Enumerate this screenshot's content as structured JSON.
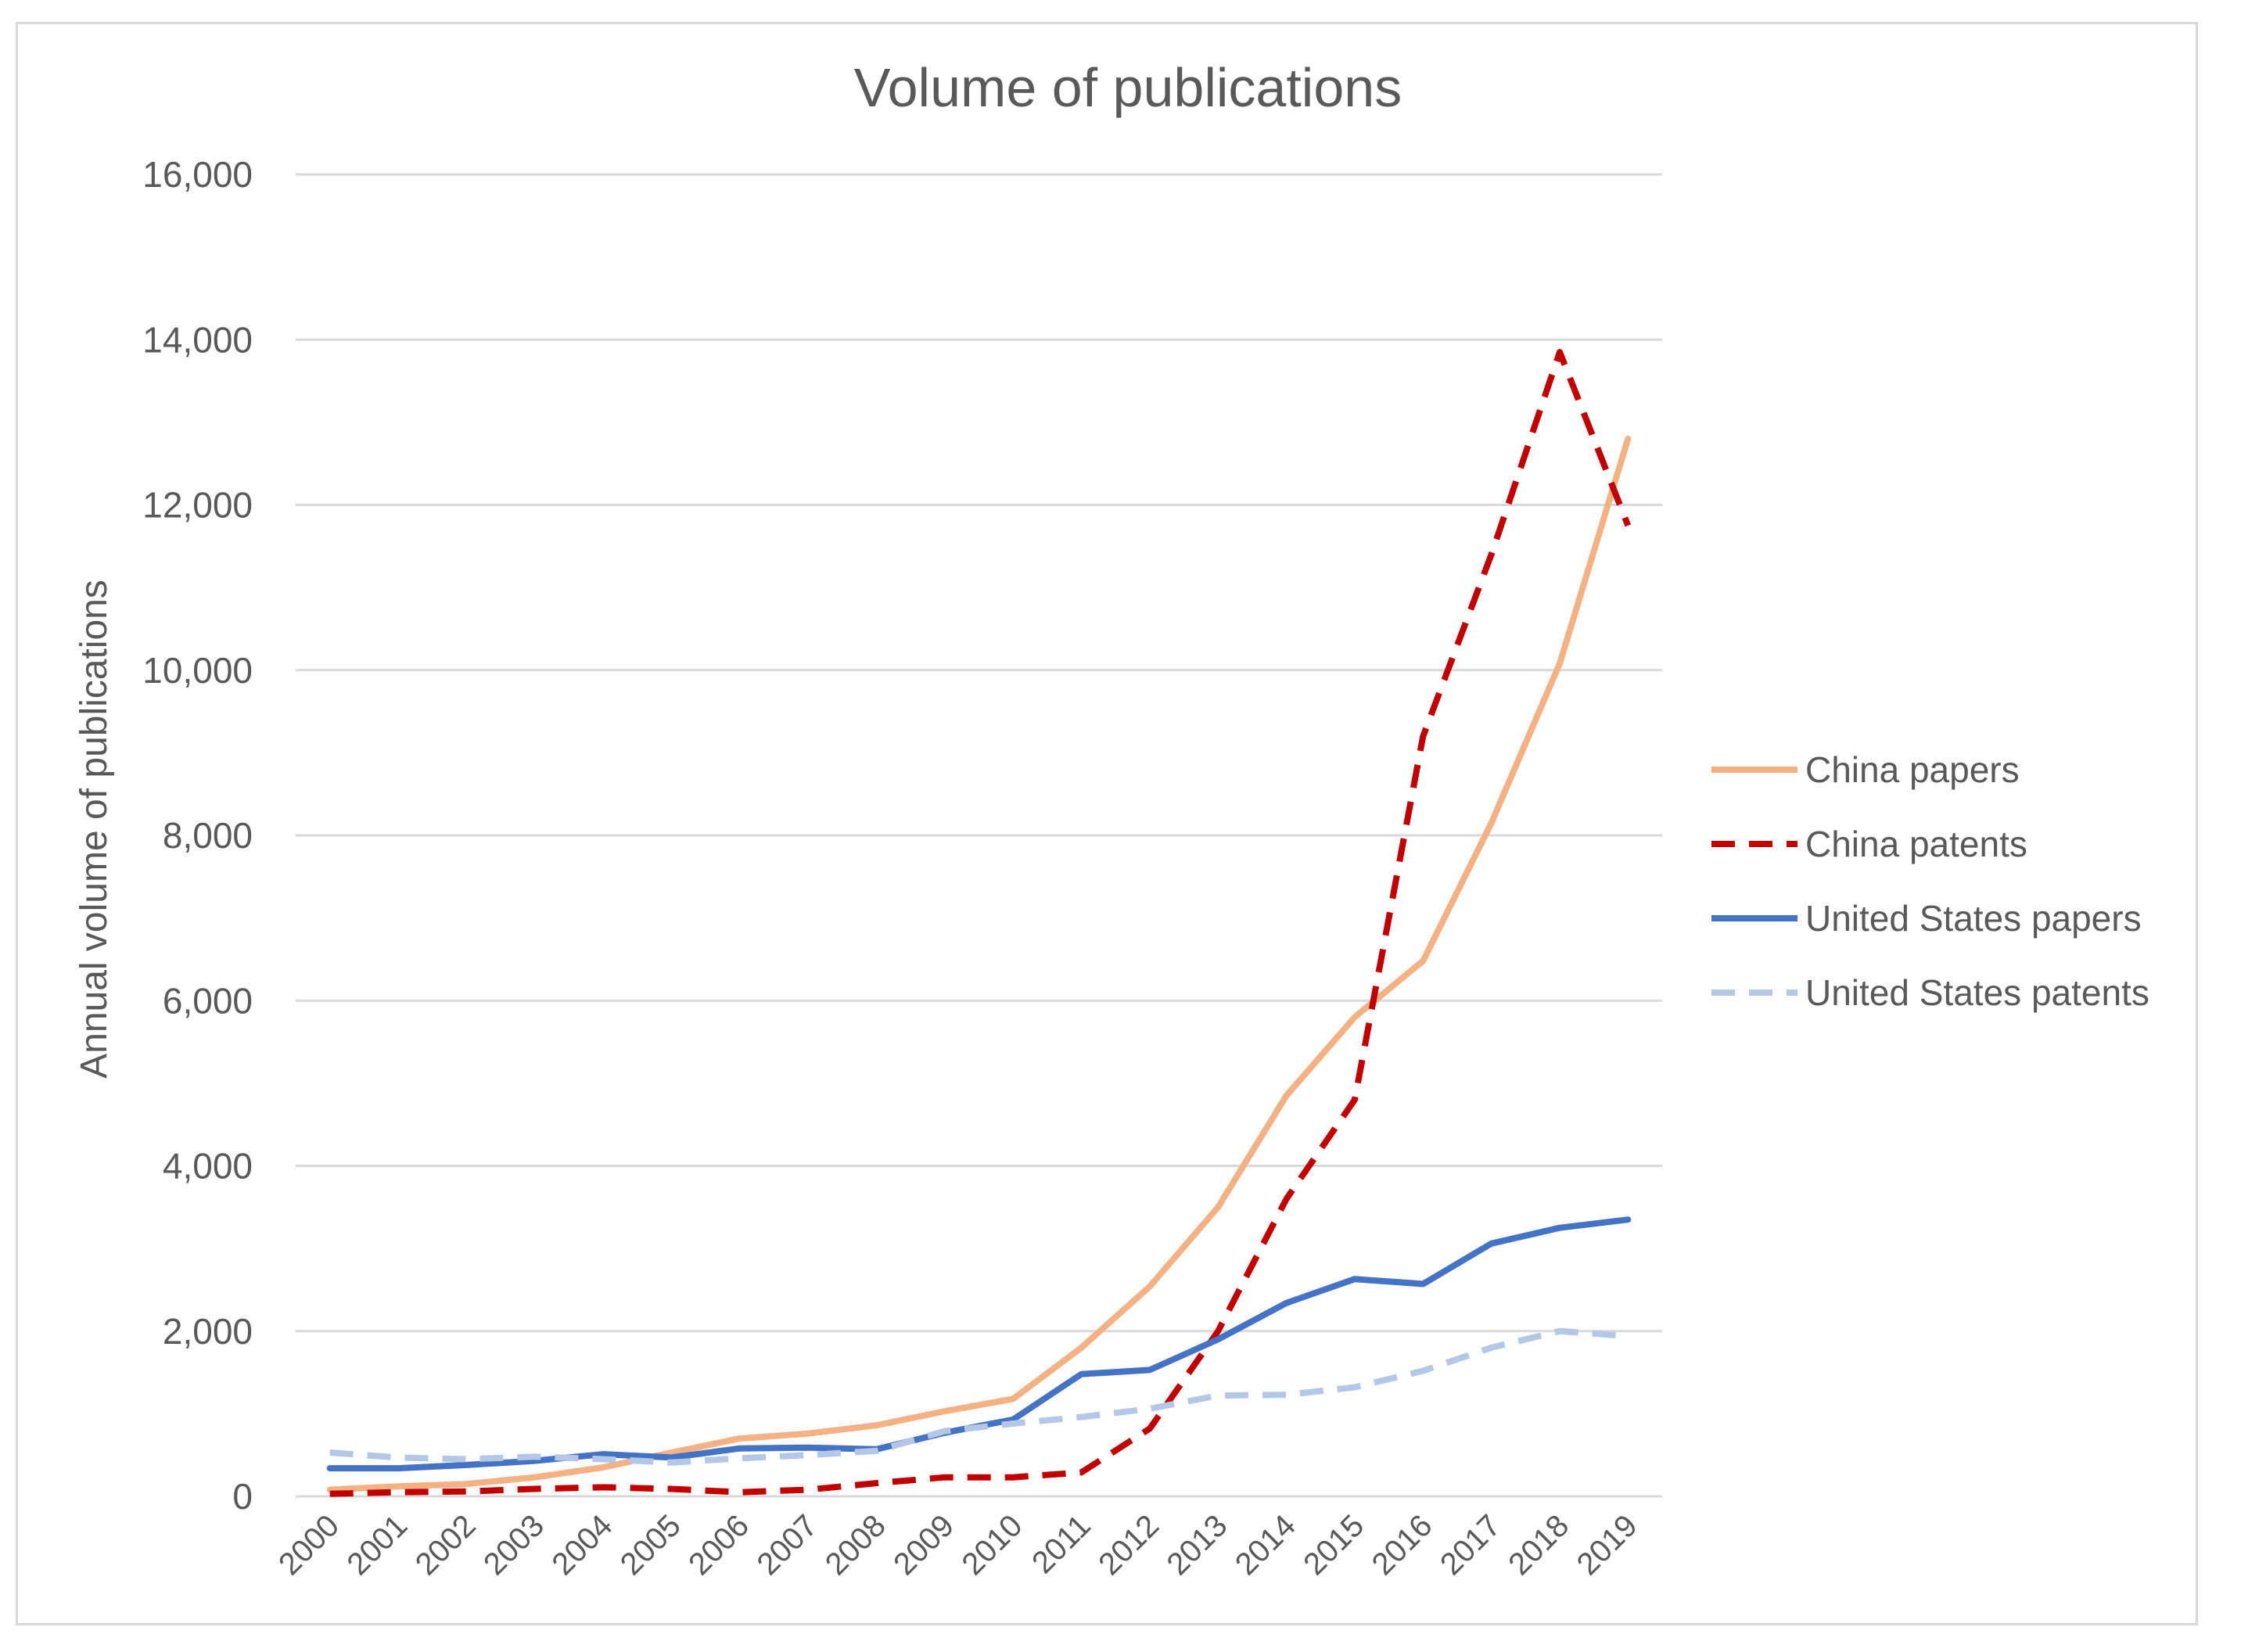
{
  "chart_data": {
    "type": "line",
    "title": "Volume of publications",
    "xlabel": "",
    "ylabel": "Annual volume of publications",
    "ylim": [
      0,
      16000
    ],
    "yticks": [
      0,
      2000,
      4000,
      6000,
      8000,
      10000,
      12000,
      14000,
      16000
    ],
    "ytick_labels": [
      "0",
      "2,000",
      "4,000",
      "6,000",
      "8,000",
      "10,000",
      "12,000",
      "14,000",
      "16,000"
    ],
    "grid": true,
    "legend_position": "right",
    "categories": [
      "2000",
      "2001",
      "2002",
      "2003",
      "2004",
      "2005",
      "2006",
      "2007",
      "2008",
      "2009",
      "2010",
      "2011",
      "2012",
      "2013",
      "2014",
      "2015",
      "2016",
      "2017",
      "2018",
      "2019"
    ],
    "series": [
      {
        "name": "China papers",
        "color": "#f4b183",
        "dash": "solid",
        "values": [
          80,
          120,
          150,
          230,
          350,
          530,
          700,
          760,
          860,
          1030,
          1180,
          1800,
          2540,
          3500,
          4850,
          5800,
          6480,
          8150,
          10080,
          12800
        ]
      },
      {
        "name": "China patents",
        "color": "#c00000",
        "dash": "dashed",
        "values": [
          30,
          50,
          60,
          90,
          110,
          90,
          50,
          80,
          160,
          230,
          230,
          290,
          820,
          2000,
          3600,
          4800,
          9200,
          11400,
          13850,
          11750
        ]
      },
      {
        "name": "United States papers",
        "color": "#4472c4",
        "dash": "solid",
        "values": [
          340,
          340,
          380,
          430,
          510,
          470,
          580,
          590,
          570,
          770,
          930,
          1480,
          1530,
          1900,
          2340,
          2630,
          2570,
          3060,
          3250,
          3350
        ]
      },
      {
        "name": "United States patents",
        "color": "#b4c7e7",
        "dash": "dashed",
        "values": [
          530,
          470,
          450,
          480,
          450,
          410,
          460,
          500,
          550,
          790,
          880,
          960,
          1060,
          1220,
          1230,
          1320,
          1520,
          1800,
          2000,
          1940
        ]
      }
    ]
  }
}
